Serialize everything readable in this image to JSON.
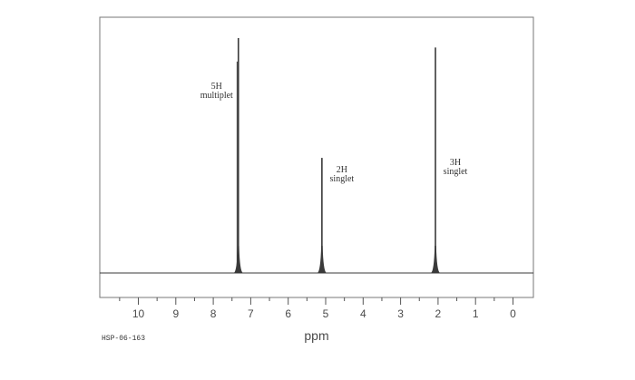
{
  "chart_data": {
    "type": "line",
    "title": "",
    "xlabel": "ppm",
    "ylabel": "",
    "xlim": [
      11,
      -0.5
    ],
    "x_reversed": true,
    "x_ticks": [
      10,
      9,
      8,
      7,
      6,
      5,
      4,
      3,
      2,
      1,
      0
    ],
    "x_tick_labels": [
      "10",
      "9",
      "8",
      "7",
      "6",
      "5",
      "4",
      "3",
      "2",
      "1",
      "0"
    ],
    "grid": false,
    "spectrum_id": "HSP-06-163",
    "colors": {
      "trace": "#3a3a3a",
      "frame": "#777777",
      "text": "#333333"
    },
    "peaks": [
      {
        "x": 7.33,
        "intensity": 1.0,
        "type": "multiplet"
      },
      {
        "x": 5.1,
        "intensity": 0.49,
        "type": "singlet"
      },
      {
        "x": 2.07,
        "intensity": 0.96,
        "type": "singlet"
      }
    ],
    "annotations": [
      {
        "peak": 0,
        "line1": "5H",
        "line2": "multiplet"
      },
      {
        "peak": 1,
        "line1": "2H",
        "line2": "singlet"
      },
      {
        "peak": 2,
        "line1": "3H",
        "line2": "singlet"
      }
    ]
  }
}
